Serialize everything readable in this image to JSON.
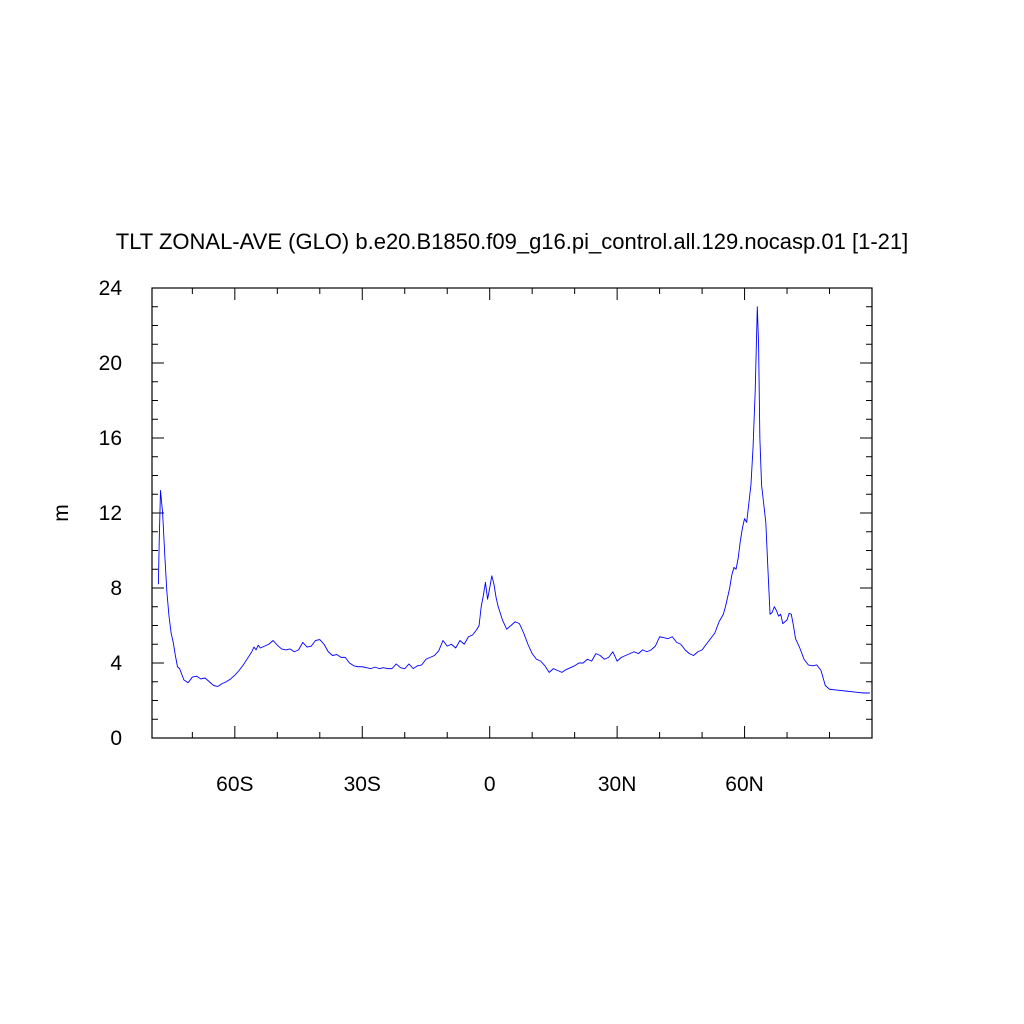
{
  "chart_data": {
    "type": "line",
    "title": "TLT ZONAL-AVE (GLO) b.e20.B1850.f09_g16.pi_control.all.129.nocasp.01 [1-21]",
    "xlabel": "",
    "ylabel": "m",
    "xlim": [
      -79.5,
      90
    ],
    "ylim": [
      0,
      24
    ],
    "x_ticks": [
      {
        "value": -60,
        "label": "60S"
      },
      {
        "value": -30,
        "label": "30S"
      },
      {
        "value": 0,
        "label": "0"
      },
      {
        "value": 30,
        "label": "30N"
      },
      {
        "value": 60,
        "label": "60N"
      }
    ],
    "y_ticks": [
      {
        "value": 0,
        "label": "0"
      },
      {
        "value": 4,
        "label": "4"
      },
      {
        "value": 8,
        "label": "8"
      },
      {
        "value": 12,
        "label": "12"
      },
      {
        "value": 16,
        "label": "16"
      },
      {
        "value": 20,
        "label": "20"
      },
      {
        "value": 24,
        "label": "24"
      }
    ],
    "grid": false,
    "series": [
      {
        "color": "#0000ff",
        "x": [
          -78,
          -77.8,
          -77.5,
          -77,
          -76.5,
          -76,
          -75.5,
          -75,
          -74.5,
          -74,
          -73.5,
          -73,
          -72.5,
          -72,
          -71,
          -70,
          -69,
          -68,
          -67,
          -66,
          -65,
          -64,
          -63,
          -62,
          -61,
          -60,
          -59,
          -58,
          -57,
          -56,
          -55.5,
          -55,
          -54.5,
          -54,
          -53,
          -52,
          -51,
          -50,
          -49,
          -48,
          -47,
          -46,
          -45,
          -44,
          -43,
          -42,
          -41,
          -40,
          -39,
          -38,
          -37,
          -36,
          -35,
          -34,
          -33,
          -32,
          -31,
          -30,
          -29,
          -28,
          -27,
          -26,
          -25,
          -24,
          -23,
          -22,
          -21,
          -20,
          -19,
          -18,
          -17,
          -16,
          -15,
          -14,
          -13,
          -12,
          -11,
          -10,
          -9,
          -8,
          -7,
          -6,
          -5,
          -4,
          -3,
          -2.5,
          -2,
          -1.5,
          -1,
          -0.5,
          0,
          0.5,
          1,
          1.5,
          2,
          3,
          4,
          5,
          6,
          7,
          8,
          9,
          10,
          11,
          12,
          13,
          14,
          15,
          16,
          17,
          18,
          19,
          20,
          21,
          22,
          23,
          24,
          25,
          26,
          27,
          28,
          29,
          30,
          31,
          32,
          33,
          34,
          35,
          36,
          37,
          38,
          39,
          40,
          41,
          42,
          43,
          44,
          45,
          46,
          47,
          48,
          49,
          50,
          51,
          52,
          53,
          54,
          55,
          55.5,
          56,
          56.5,
          57,
          57.5,
          58,
          58.5,
          59,
          59.5,
          60,
          60.5,
          61,
          61.5,
          62,
          62.5,
          63,
          63.3,
          63.6,
          64,
          64.5,
          65,
          65.5,
          66,
          66.5,
          67,
          67.5,
          68,
          68.5,
          69,
          70,
          70.5,
          71,
          71.5,
          72,
          73,
          74,
          75,
          76,
          77,
          78,
          79,
          80,
          82,
          84,
          86,
          88,
          89.5
        ],
        "values": [
          8.2,
          10.5,
          13.2,
          12.0,
          9.8,
          7.8,
          6.5,
          5.6,
          5.1,
          4.4,
          3.8,
          3.7,
          3.4,
          3.1,
          2.95,
          3.25,
          3.3,
          3.15,
          3.2,
          3.0,
          2.8,
          2.75,
          2.9,
          3.0,
          3.15,
          3.35,
          3.6,
          3.9,
          4.25,
          4.6,
          4.85,
          4.7,
          4.95,
          4.8,
          4.9,
          5.0,
          5.2,
          4.95,
          4.75,
          4.7,
          4.75,
          4.6,
          4.7,
          5.1,
          4.85,
          4.9,
          5.2,
          5.25,
          5.0,
          4.6,
          4.4,
          4.45,
          4.3,
          4.3,
          4.0,
          3.85,
          3.8,
          3.8,
          3.75,
          3.7,
          3.78,
          3.7,
          3.75,
          3.7,
          3.7,
          3.95,
          3.75,
          3.7,
          3.95,
          3.7,
          3.85,
          3.9,
          4.2,
          4.3,
          4.4,
          4.65,
          5.2,
          4.9,
          5.0,
          4.8,
          5.2,
          5.0,
          5.4,
          5.5,
          5.8,
          6.0,
          7.0,
          7.6,
          8.3,
          7.4,
          8.0,
          8.65,
          8.2,
          7.5,
          7.0,
          6.3,
          5.8,
          6.0,
          6.2,
          6.1,
          5.6,
          5.0,
          4.5,
          4.2,
          4.1,
          3.85,
          3.5,
          3.7,
          3.6,
          3.5,
          3.65,
          3.75,
          3.85,
          4.0,
          4.0,
          4.2,
          4.1,
          4.5,
          4.4,
          4.2,
          4.3,
          4.6,
          4.1,
          4.3,
          4.4,
          4.5,
          4.6,
          4.5,
          4.7,
          4.6,
          4.7,
          4.9,
          5.4,
          5.35,
          5.3,
          5.4,
          5.1,
          5.0,
          4.7,
          4.5,
          4.4,
          4.6,
          4.7,
          5.0,
          5.3,
          5.6,
          6.2,
          6.6,
          7.0,
          7.5,
          8.0,
          8.7,
          9.1,
          9.0,
          9.6,
          10.5,
          11.2,
          11.7,
          11.5,
          12.5,
          13.5,
          15.5,
          18.5,
          23.0,
          21.0,
          16.0,
          13.5,
          12.5,
          11.5,
          9.0,
          6.6,
          6.7,
          7.0,
          6.8,
          6.5,
          6.6,
          6.1,
          6.3,
          6.65,
          6.6,
          6.0,
          5.3,
          4.8,
          4.2,
          3.9,
          3.85,
          3.9,
          3.6,
          2.8,
          2.6,
          2.55,
          2.5,
          2.45,
          2.4,
          2.4
        ]
      }
    ]
  }
}
